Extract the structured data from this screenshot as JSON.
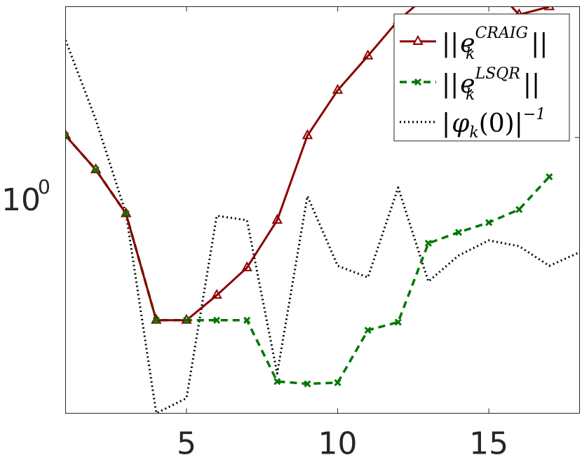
{
  "chart_data": {
    "type": "line",
    "yscale": "log",
    "xlim": [
      1,
      18
    ],
    "ylim": [
      0.06,
      3.8
    ],
    "grid": false,
    "legend_position": "top-right",
    "x_ticks": [
      5,
      10,
      15
    ],
    "x_tick_labels": [
      "5",
      "10",
      "15"
    ],
    "y_ticks": [
      1
    ],
    "y_tick_labels": [
      {
        "base": "10",
        "exponent": "0"
      }
    ],
    "series": [
      {
        "name": "||e_k^{CRAIG}||",
        "legend": {
          "open": "||",
          "e": "e",
          "sub": "k",
          "sup": "CRAIG",
          "close": "||"
        },
        "color": "#8b0000",
        "style": "solid",
        "marker": "triangle",
        "x": [
          1,
          2,
          3,
          4,
          5,
          6,
          7,
          8,
          9,
          10,
          11,
          12,
          13,
          14,
          15,
          16,
          17
        ],
        "y": [
          1.02,
          0.72,
          0.46,
          0.155,
          0.155,
          0.2,
          0.265,
          0.43,
          1.02,
          1.62,
          2.3,
          3.3,
          4.3,
          4.6,
          4.9,
          3.5,
          3.8
        ]
      },
      {
        "name": "||e_k^{LSQR}||",
        "legend": {
          "open": "||",
          "e": "e",
          "sub": "k",
          "sup": "LSQR",
          "close": "||"
        },
        "color": "#007700",
        "style": "dashed",
        "marker": "x",
        "x": [
          1,
          2,
          3,
          4,
          5,
          6,
          7,
          8,
          9,
          10,
          11,
          12,
          13,
          14,
          15,
          16,
          17
        ],
        "y": [
          1.02,
          0.72,
          0.46,
          0.155,
          0.155,
          0.155,
          0.155,
          0.083,
          0.081,
          0.082,
          0.14,
          0.152,
          0.34,
          0.38,
          0.42,
          0.48,
          0.67
        ]
      },
      {
        "name": "|φ_k(0)|^{-1}",
        "legend": {
          "open": "|",
          "phi": "φ",
          "sub": "k",
          "arg": "(0)|",
          "sup": "−1"
        },
        "color": "#000000",
        "style": "dotted",
        "marker": "none",
        "x": [
          1,
          2,
          3,
          4,
          5,
          6,
          7,
          8,
          9,
          10,
          11,
          12,
          13,
          14,
          15,
          16,
          17,
          18
        ],
        "y": [
          2.7,
          1.2,
          0.46,
          0.06,
          0.07,
          0.45,
          0.43,
          0.09,
          0.55,
          0.27,
          0.24,
          0.6,
          0.23,
          0.3,
          0.35,
          0.33,
          0.27,
          0.31
        ]
      }
    ]
  }
}
